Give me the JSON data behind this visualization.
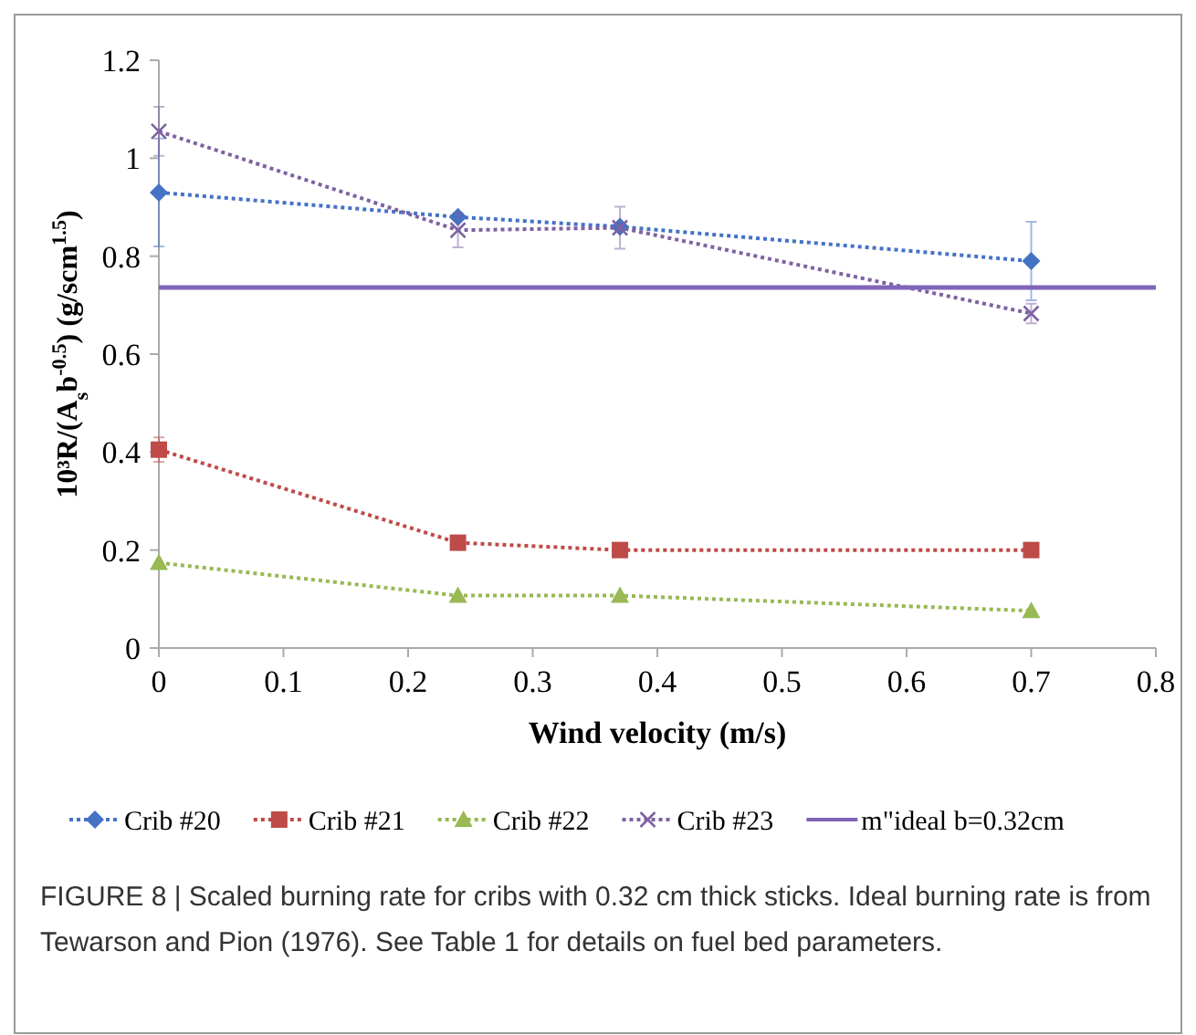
{
  "chart_data": {
    "type": "line",
    "xlabel": "Wind velocity (m/s)",
    "ylabel": "10³R/(A$_{s}$b$^{-0.5}$) (g/scm$^{1.5}$)",
    "x": [
      0,
      0.24,
      0.37,
      0.7
    ],
    "series": [
      {
        "name": "Crib #20",
        "color": "#4472c4",
        "marker": "diamond",
        "values": [
          0.93,
          0.88,
          0.86,
          0.79
        ],
        "errors": [
          0.11,
          null,
          null,
          0.08
        ]
      },
      {
        "name": "Crib #21",
        "color": "#be4b48",
        "marker": "square",
        "values": [
          0.405,
          0.215,
          0.2,
          0.2
        ],
        "errors": [
          0.025,
          null,
          null,
          null
        ]
      },
      {
        "name": "Crib #22",
        "color": "#98b954",
        "marker": "triangle",
        "values": [
          0.174,
          0.107,
          0.107,
          0.076
        ]
      },
      {
        "name": "Crib #23",
        "color": "#7e62a1",
        "marker": "cross",
        "values": [
          1.055,
          0.853,
          0.858,
          0.683
        ],
        "errors": [
          0.05,
          0.035,
          0.043,
          0.02
        ]
      },
      {
        "name": "m\"ideal b=0.32cm",
        "type": "line",
        "color": "#8064b8",
        "marker": "none",
        "line_style": "solid",
        "x": [
          0,
          0.8
        ],
        "values": [
          0.736,
          0.736
        ]
      }
    ],
    "line_style": "dotted",
    "xlim": [
      0,
      0.8
    ],
    "xticks": [
      0,
      0.1,
      0.2,
      0.3,
      0.4,
      0.5,
      0.6,
      0.7,
      0.8
    ],
    "ylim": [
      0,
      1.2
    ],
    "yticks": [
      0,
      0.2,
      0.4,
      0.6,
      0.8,
      1,
      1.2
    ],
    "grid": false,
    "legend": "bottom",
    "annotations": [
      "FIGURE 8 | Scaled burning rate for cribs with 0.32 cm thick sticks. Ideal burning rate is from Tewarson and Pion (1976). See Table 1 for details on fuel bed parameters."
    ]
  }
}
